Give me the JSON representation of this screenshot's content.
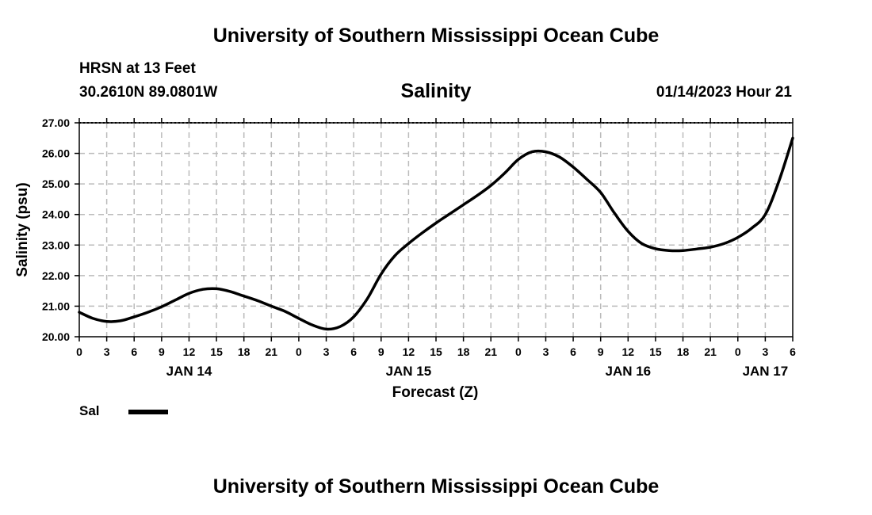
{
  "header": {
    "title_top": "University of Southern Mississippi Ocean Cube",
    "title_bottom": "University of Southern Mississippi Ocean Cube",
    "station": "HRSN at 13 Feet",
    "coords": "30.2610N  89.0801W",
    "timestamp": "01/14/2023 Hour 21"
  },
  "chart_data": {
    "type": "line",
    "title": "Salinity",
    "xlabel": "Forecast (Z)",
    "ylabel": "Salinity (psu)",
    "ylim": [
      20,
      27
    ],
    "yticks": [
      "20.00",
      "21.00",
      "22.00",
      "23.00",
      "24.00",
      "25.00",
      "26.00",
      "27.00"
    ],
    "x_hour_range": [
      0,
      78
    ],
    "xticks": [
      "0",
      "3",
      "6",
      "9",
      "12",
      "15",
      "18",
      "21",
      "0",
      "3",
      "6",
      "9",
      "12",
      "15",
      "18",
      "21",
      "0",
      "3",
      "6",
      "9",
      "12",
      "15",
      "18",
      "21",
      "0",
      "3",
      "6"
    ],
    "days": [
      {
        "label": "JAN 14",
        "hour": 12
      },
      {
        "label": "JAN 15",
        "hour": 36
      },
      {
        "label": "JAN 16",
        "hour": 60
      },
      {
        "label": "JAN 17",
        "hour": 75
      }
    ],
    "grid": true,
    "series": [
      {
        "name": "Sal",
        "color": "#000000",
        "x": [
          0,
          1.5,
          3,
          4.5,
          6,
          7.5,
          9,
          10.5,
          12,
          13.5,
          15,
          16.5,
          18,
          19.5,
          21,
          22.5,
          24,
          25.5,
          27,
          28.5,
          30,
          31.5,
          33,
          34.5,
          36,
          37.5,
          39,
          40.5,
          42,
          43.5,
          45,
          46.5,
          48,
          49.5,
          51,
          52.5,
          54,
          55.5,
          57,
          58.5,
          60,
          61.5,
          63,
          64.5,
          66,
          67.5,
          69,
          70.5,
          72,
          73.5,
          75,
          76.5,
          78
        ],
        "values": [
          20.8,
          20.6,
          20.5,
          20.52,
          20.65,
          20.8,
          20.98,
          21.2,
          21.42,
          21.55,
          21.57,
          21.48,
          21.33,
          21.18,
          21.0,
          20.83,
          20.6,
          20.38,
          20.25,
          20.33,
          20.65,
          21.25,
          22.05,
          22.65,
          23.05,
          23.4,
          23.72,
          24.02,
          24.32,
          24.62,
          24.95,
          25.35,
          25.8,
          26.05,
          26.05,
          25.88,
          25.55,
          25.15,
          24.72,
          24.05,
          23.45,
          23.05,
          22.88,
          22.82,
          22.82,
          22.87,
          22.93,
          23.05,
          23.25,
          23.55,
          24.0,
          25.1,
          26.5
        ]
      }
    ]
  },
  "legend": {
    "label": "Sal"
  }
}
